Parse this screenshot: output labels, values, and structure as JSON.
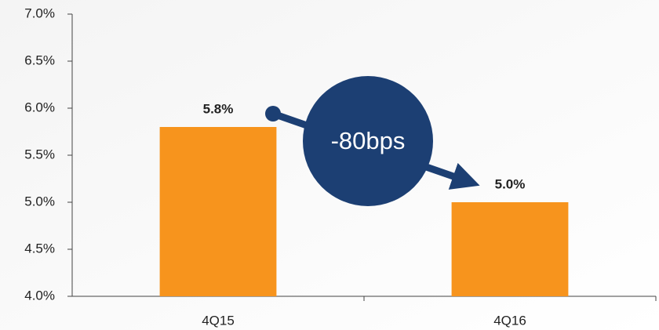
{
  "chart_data": {
    "type": "bar",
    "categories": [
      "4Q15",
      "4Q16"
    ],
    "values": [
      5.8,
      5.0
    ],
    "value_labels": [
      "5.8%",
      "5.0%"
    ],
    "color": "#f7941d",
    "ylim": [
      4.0,
      7.0
    ],
    "yticks": [
      {
        "value": 4.0,
        "label": "4.0%"
      },
      {
        "value": 4.5,
        "label": "4.5%"
      },
      {
        "value": 5.0,
        "label": "5.0%"
      },
      {
        "value": 5.5,
        "label": "5.5%"
      },
      {
        "value": 6.0,
        "label": "6.0%"
      },
      {
        "value": 6.5,
        "label": "6.5%"
      },
      {
        "value": 7.0,
        "label": "7.0%"
      }
    ],
    "annotation": "-80bps",
    "annotation_color": "#1c3f73",
    "grid": false
  }
}
